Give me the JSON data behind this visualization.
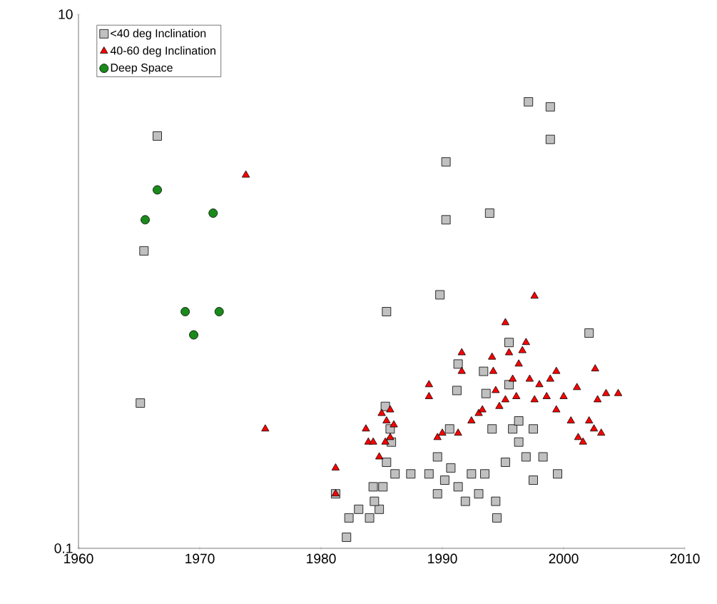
{
  "chart_data": {
    "type": "scatter",
    "log": "y",
    "legend": "top left",
    "grid": false,
    "xlim": [
      1960,
      2010
    ],
    "xticks": [
      1960,
      1970,
      1980,
      1990,
      2000,
      2010
    ],
    "ylim": [
      0.1,
      10
    ],
    "yticks": [
      0.1,
      10
    ],
    "series": [
      {
        "name": "<40 deg Inclination",
        "color": "#c0c0c0",
        "marker": "square",
        "x": [
          1966.5,
          1965.4,
          1965.1,
          1990.3,
          1990.3,
          1993.9,
          1989.8,
          1997.1,
          1998.9,
          2002.1,
          1998.9,
          1985.4,
          1982.3,
          1983.1,
          1984.0,
          1984.8,
          1982.1,
          1984.4,
          1985.1,
          1985.4,
          1985.8,
          1985.3,
          1985.7,
          1984.3,
          1981.2,
          1986.1,
          1988.9,
          1989.6,
          1990.7,
          1991.3,
          1991.9,
          1992.4,
          1993.0,
          1993.5,
          1994.4,
          1994.5,
          1995.2,
          1995.8,
          1996.3,
          1996.9,
          1997.5,
          1998.3,
          1999.5,
          1990.6,
          1991.2,
          1991.3,
          1993.4,
          1993.6,
          1994.1,
          1995.5,
          1995.5,
          1996.3,
          1997.5,
          1987.4,
          1989.6,
          1990.2
        ],
        "values": [
          3.5,
          1.3,
          0.35,
          2.8,
          1.7,
          1.8,
          0.89,
          4.7,
          4.5,
          0.64,
          3.4,
          0.77,
          0.13,
          0.14,
          0.13,
          0.14,
          0.11,
          0.15,
          0.17,
          0.21,
          0.25,
          0.34,
          0.28,
          0.17,
          0.16,
          0.19,
          0.19,
          0.22,
          0.2,
          0.17,
          0.15,
          0.19,
          0.16,
          0.19,
          0.15,
          0.13,
          0.21,
          0.28,
          0.25,
          0.22,
          0.18,
          0.22,
          0.19,
          0.28,
          0.39,
          0.49,
          0.46,
          0.38,
          0.28,
          0.59,
          0.41,
          0.3,
          0.28,
          0.19,
          0.16,
          0.18
        ]
      },
      {
        "name": "40-60 deg Inclination",
        "color": "#ff0000",
        "marker": "triangle",
        "x": [
          1981.2,
          1983.7,
          1983.9,
          1984.3,
          1985.0,
          1985.4,
          1985.7,
          1986.0,
          1984.8,
          1985.3,
          1985.7,
          1988.9,
          1988.9,
          1989.6,
          1990.0,
          1991.6,
          1991.6,
          1991.3,
          1992.4,
          1993.0,
          1993.3,
          1994.1,
          1994.2,
          1994.4,
          1994.7,
          1995.5,
          1995.8,
          1996.1,
          1996.6,
          1996.9,
          1997.2,
          1997.6,
          1998.0,
          1998.6,
          1998.9,
          1999.4,
          1999.4,
          2000.0,
          2000.6,
          2001.1,
          2001.2,
          2001.6,
          2002.1,
          2002.6,
          2002.8,
          2002.5,
          2003.5,
          2004.5,
          2003.1,
          1996.3,
          1995.2,
          1973.8,
          1975.4,
          1997.6,
          1995.2,
          1981.2
        ],
        "values": [
          0.16,
          0.28,
          0.25,
          0.25,
          0.32,
          0.3,
          0.26,
          0.29,
          0.22,
          0.25,
          0.33,
          0.41,
          0.37,
          0.26,
          0.27,
          0.54,
          0.46,
          0.27,
          0.3,
          0.32,
          0.33,
          0.52,
          0.46,
          0.39,
          0.34,
          0.54,
          0.43,
          0.37,
          0.55,
          0.59,
          0.43,
          0.36,
          0.41,
          0.37,
          0.43,
          0.46,
          0.33,
          0.37,
          0.3,
          0.4,
          0.26,
          0.25,
          0.3,
          0.47,
          0.36,
          0.28,
          0.38,
          0.38,
          0.27,
          0.49,
          0.36,
          2.5,
          0.28,
          0.88,
          0.7,
          0.2
        ]
      },
      {
        "name": "Deep Space",
        "color": "#1a8a1a",
        "marker": "circle",
        "x": [
          1966.5,
          1965.5,
          1971.1,
          1971.6,
          1968.8,
          1969.5
        ],
        "values": [
          2.2,
          1.7,
          1.8,
          0.77,
          0.77,
          0.63
        ]
      }
    ]
  }
}
